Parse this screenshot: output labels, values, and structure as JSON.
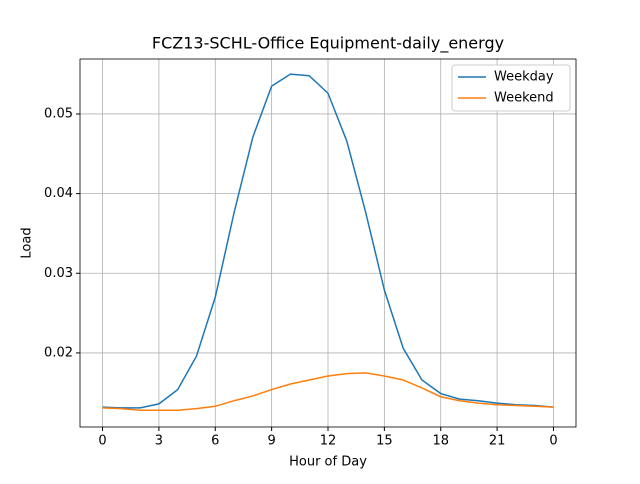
{
  "chart_data": {
    "type": "line",
    "title": "FCZ13-SCHL-Office Equipment-daily_energy",
    "x_label": "Hour of Day",
    "y_label": "Load",
    "x": [
      0,
      1,
      2,
      3,
      4,
      5,
      6,
      7,
      8,
      9,
      10,
      11,
      12,
      13,
      14,
      15,
      16,
      17,
      18,
      19,
      20,
      21,
      22,
      23,
      24
    ],
    "series": [
      {
        "name": "Weekday",
        "color": "#1f77b4",
        "values": [
          0.0132,
          0.0131,
          0.0131,
          0.0136,
          0.0154,
          0.0196,
          0.027,
          0.0376,
          0.0471,
          0.0535,
          0.055,
          0.0548,
          0.0526,
          0.0466,
          0.0377,
          0.0279,
          0.0206,
          0.0166,
          0.0149,
          0.0142,
          0.014,
          0.0137,
          0.0135,
          0.0134,
          0.0132
        ]
      },
      {
        "name": "Weekend",
        "color": "#ff7f0e",
        "values": [
          0.0131,
          0.013,
          0.0128,
          0.0128,
          0.0128,
          0.013,
          0.0133,
          0.014,
          0.0146,
          0.0154,
          0.0161,
          0.0166,
          0.0171,
          0.0174,
          0.0175,
          0.0171,
          0.0166,
          0.0156,
          0.0145,
          0.014,
          0.0137,
          0.0135,
          0.0134,
          0.0133,
          0.0132
        ]
      }
    ],
    "xlim": [
      -1.2,
      25.2
    ],
    "ylim": [
      0.0107,
      0.0569
    ],
    "xticks": [
      0,
      3,
      6,
      9,
      12,
      15,
      18,
      21,
      {
        "value": 24,
        "label": "0"
      }
    ],
    "yticks": [
      0.02,
      0.03,
      0.04,
      0.05
    ],
    "grid": true,
    "legend": "upper-right"
  }
}
